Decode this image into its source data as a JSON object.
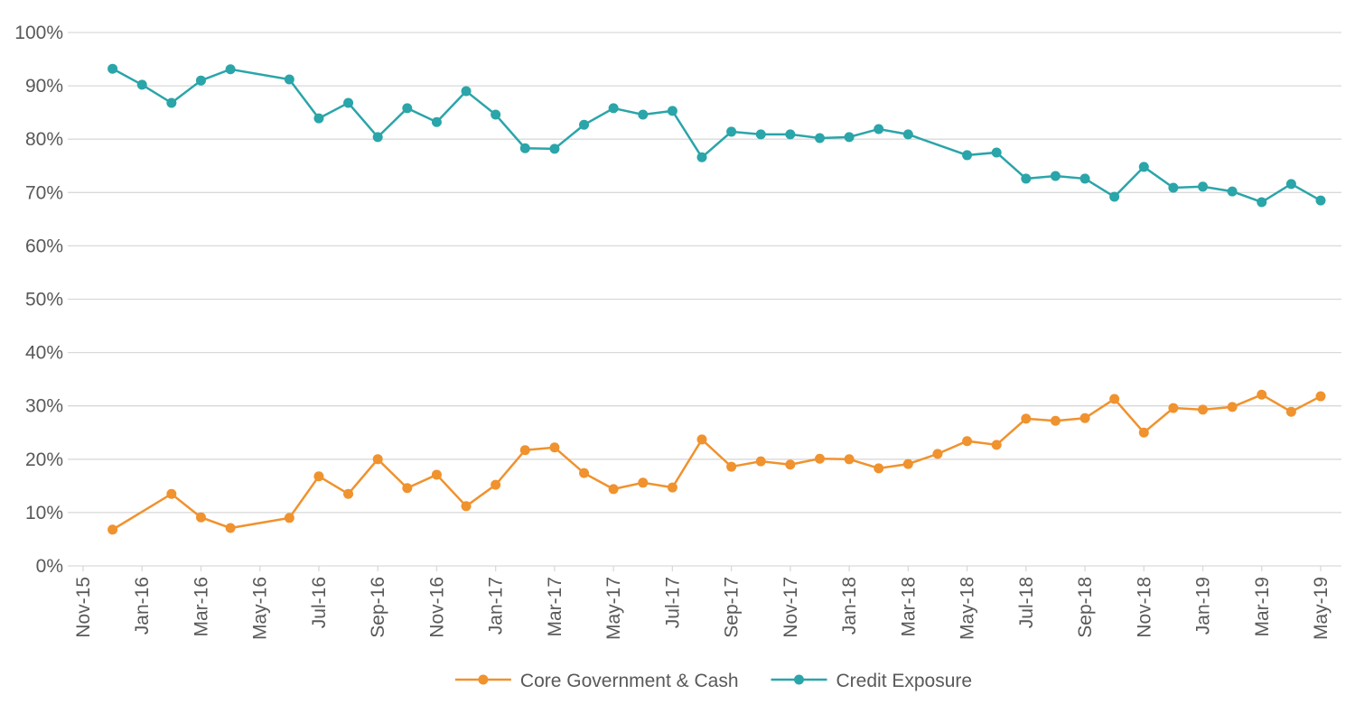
{
  "chart_data": {
    "type": "line",
    "xlim": [
      "2015-11",
      "2019-05"
    ],
    "xticks": [
      {
        "value": "2015-11",
        "label": "Nov-15"
      },
      {
        "value": "2016-01",
        "label": "Jan-16"
      },
      {
        "value": "2016-03",
        "label": "Mar-16"
      },
      {
        "value": "2016-05",
        "label": "May-16"
      },
      {
        "value": "2016-07",
        "label": "Jul-16"
      },
      {
        "value": "2016-09",
        "label": "Sep-16"
      },
      {
        "value": "2016-11",
        "label": "Nov-16"
      },
      {
        "value": "2017-01",
        "label": "Jan-17"
      },
      {
        "value": "2017-03",
        "label": "Mar-17"
      },
      {
        "value": "2017-05",
        "label": "May-17"
      },
      {
        "value": "2017-07",
        "label": "Jul-17"
      },
      {
        "value": "2017-09",
        "label": "Sep-17"
      },
      {
        "value": "2017-11",
        "label": "Nov-17"
      },
      {
        "value": "2018-01",
        "label": "Jan-18"
      },
      {
        "value": "2018-03",
        "label": "Mar-18"
      },
      {
        "value": "2018-05",
        "label": "May-18"
      },
      {
        "value": "2018-07",
        "label": "Jul-18"
      },
      {
        "value": "2018-09",
        "label": "Sep-18"
      },
      {
        "value": "2018-11",
        "label": "Nov-18"
      },
      {
        "value": "2019-01",
        "label": "Jan-19"
      },
      {
        "value": "2019-03",
        "label": "Mar-19"
      },
      {
        "value": "2019-05",
        "label": "May-19"
      }
    ],
    "ylim": [
      0,
      100
    ],
    "yticks": [
      {
        "value": 0,
        "label": "0%"
      },
      {
        "value": 10,
        "label": "10%"
      },
      {
        "value": 20,
        "label": "20%"
      },
      {
        "value": 30,
        "label": "30%"
      },
      {
        "value": 40,
        "label": "40%"
      },
      {
        "value": 50,
        "label": "50%"
      },
      {
        "value": 60,
        "label": "60%"
      },
      {
        "value": 70,
        "label": "70%"
      },
      {
        "value": 80,
        "label": "80%"
      },
      {
        "value": 90,
        "label": "90%"
      },
      {
        "value": 100,
        "label": "100%"
      }
    ],
    "grid": true,
    "legend": "bottom",
    "series": [
      {
        "name": "Core Government & Cash",
        "color": "#f0922e",
        "x": [
          "2015-12",
          "2016-02",
          "2016-03",
          "2016-04",
          "2016-06",
          "2016-07",
          "2016-08",
          "2016-09",
          "2016-10",
          "2016-11",
          "2016-12",
          "2017-01",
          "2017-02",
          "2017-03",
          "2017-04",
          "2017-05",
          "2017-06",
          "2017-07",
          "2017-08",
          "2017-09",
          "2017-10",
          "2017-11",
          "2017-12",
          "2018-01",
          "2018-02",
          "2018-03",
          "2018-04",
          "2018-05",
          "2018-06",
          "2018-07",
          "2018-08",
          "2018-09",
          "2018-10",
          "2018-11",
          "2018-12",
          "2019-01",
          "2019-02",
          "2019-03",
          "2019-04",
          "2019-05"
        ],
        "values": [
          6.8,
          13.5,
          9.1,
          7.1,
          9.0,
          16.8,
          13.5,
          20.0,
          14.6,
          17.1,
          11.2,
          15.2,
          21.7,
          22.2,
          17.4,
          14.4,
          15.6,
          14.7,
          23.7,
          18.6,
          19.6,
          19.0,
          20.1,
          20.0,
          18.3,
          19.1,
          21.0,
          23.4,
          22.7,
          27.6,
          27.2,
          27.7,
          31.3,
          25.0,
          29.6,
          29.3,
          29.8,
          32.1,
          28.9,
          31.8
        ]
      },
      {
        "name": "Credit Exposure",
        "color": "#2aa5a9",
        "x": [
          "2015-12",
          "2016-01",
          "2016-02",
          "2016-03",
          "2016-04",
          "2016-06",
          "2016-07",
          "2016-08",
          "2016-09",
          "2016-10",
          "2016-11",
          "2016-12",
          "2017-01",
          "2017-02",
          "2017-03",
          "2017-04",
          "2017-05",
          "2017-06",
          "2017-07",
          "2017-08",
          "2017-09",
          "2017-10",
          "2017-11",
          "2017-12",
          "2018-01",
          "2018-02",
          "2018-03",
          "2018-05",
          "2018-06",
          "2018-07",
          "2018-08",
          "2018-09",
          "2018-10",
          "2018-11",
          "2018-12",
          "2019-01",
          "2019-02",
          "2019-03",
          "2019-04",
          "2019-05"
        ],
        "values": [
          93.2,
          90.2,
          86.8,
          91.0,
          93.1,
          91.2,
          83.9,
          86.8,
          80.4,
          85.8,
          83.2,
          89.0,
          84.6,
          78.3,
          78.2,
          82.7,
          85.8,
          84.6,
          85.3,
          76.6,
          81.4,
          80.9,
          80.9,
          80.2,
          80.4,
          81.9,
          80.9,
          77.0,
          77.5,
          72.6,
          73.1,
          72.6,
          69.2,
          74.8,
          70.9,
          71.1,
          70.2,
          68.2,
          71.6,
          68.5
        ]
      }
    ]
  }
}
